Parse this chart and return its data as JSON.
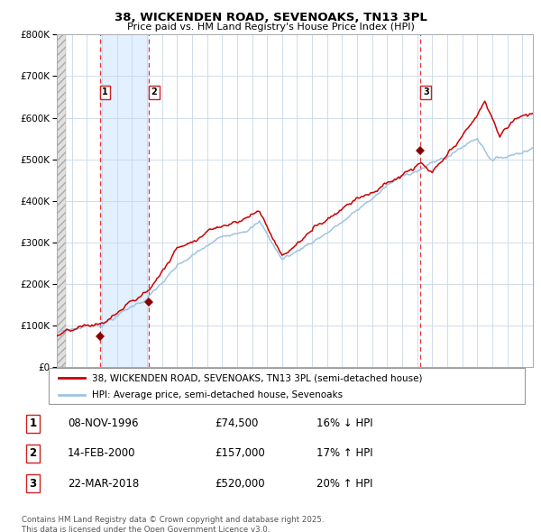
{
  "title": "38, WICKENDEN ROAD, SEVENOAKS, TN13 3PL",
  "subtitle": "Price paid vs. HM Land Registry's House Price Index (HPI)",
  "legend_line1": "38, WICKENDEN ROAD, SEVENOAKS, TN13 3PL (semi-detached house)",
  "legend_line2": "HPI: Average price, semi-detached house, Sevenoaks",
  "footer": "Contains HM Land Registry data © Crown copyright and database right 2025.\nThis data is licensed under the Open Government Licence v3.0.",
  "transactions": [
    {
      "num": 1,
      "date": "08-NOV-1996",
      "price": 74500,
      "rel": "16% ↓ HPI",
      "year": 1996.86
    },
    {
      "num": 2,
      "date": "14-FEB-2000",
      "price": 157000,
      "rel": "17% ↑ HPI",
      "year": 2000.12
    },
    {
      "num": 3,
      "date": "22-MAR-2018",
      "price": 520000,
      "rel": "20% ↑ HPI",
      "year": 2018.22
    }
  ],
  "hpi_color": "#a0c4e0",
  "price_color": "#cc0000",
  "marker_color": "#880000",
  "grid_color": "#c8d8e8",
  "vline_color": "#ee3333",
  "shade_color": "#ddeeff",
  "background_color": "#ffffff",
  "ylim_max": 800000,
  "xmin": 1994.0,
  "xmax": 2025.7
}
